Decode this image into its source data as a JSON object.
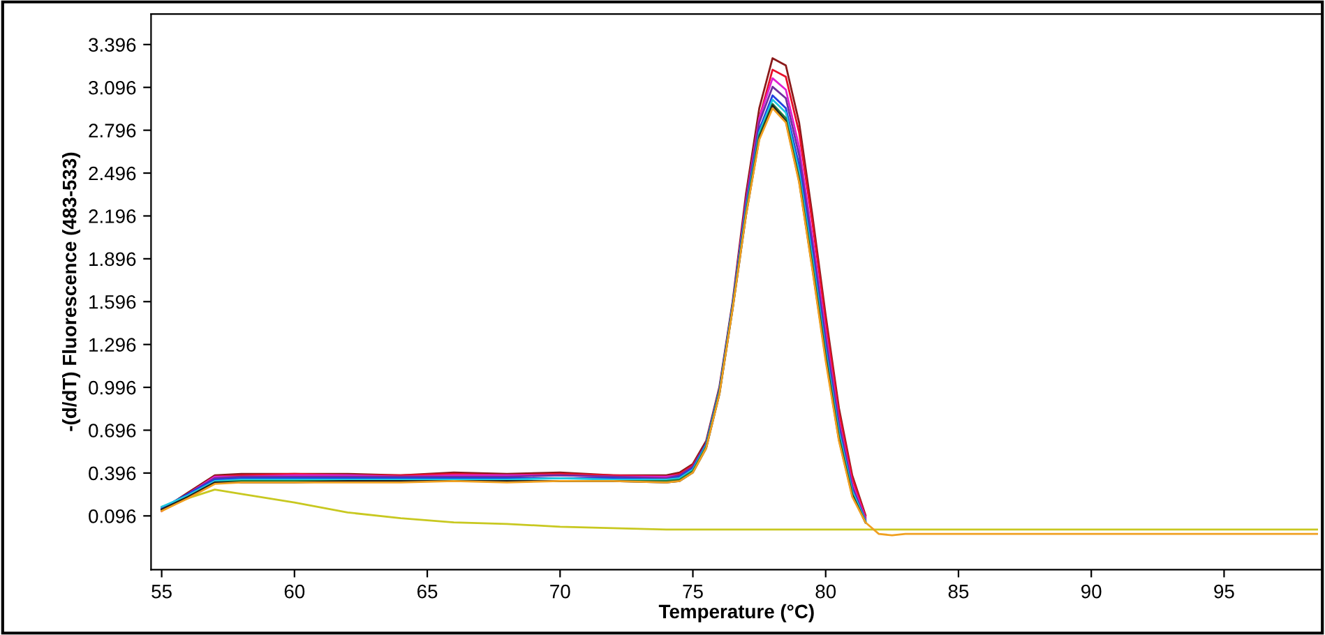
{
  "chart_data": {
    "type": "line",
    "xlabel": "Temperature (°C)",
    "ylabel": "-(d/dT) Fluorescence (483-533)",
    "x": [
      55,
      56,
      57,
      58,
      60,
      62,
      64,
      66,
      68,
      70,
      72,
      74,
      74.5,
      75,
      75.5,
      76,
      76.5,
      77,
      77.5,
      78,
      78.5,
      79,
      79.5,
      80,
      80.5,
      81,
      81.5,
      82,
      82.5,
      83,
      84,
      86,
      88,
      90,
      92,
      94,
      96,
      98.5
    ],
    "xlim": [
      54.6,
      98.7
    ],
    "xticks": [
      55,
      60,
      65,
      70,
      75,
      80,
      85,
      90,
      95
    ],
    "ylim": [
      -0.28,
      3.61
    ],
    "yticks": [
      0.096,
      0.396,
      0.696,
      0.996,
      1.296,
      1.596,
      1.896,
      2.196,
      2.496,
      2.796,
      3.096,
      3.396
    ],
    "grid": false,
    "series": [
      {
        "color": "#c8c820",
        "values": [
          0.16,
          0.22,
          0.28,
          0.25,
          0.19,
          0.12,
          0.08,
          0.05,
          0.04,
          0.02,
          0.01,
          0.0,
          0.0,
          0.0,
          0.0,
          0.0,
          0.0,
          0.0,
          0.0,
          0.0,
          0.0,
          0.0,
          0.0,
          0.0,
          0.0,
          0.0,
          0.0,
          0.0,
          0.0,
          0.0,
          0.0,
          0.0,
          0.0,
          0.0,
          0.0,
          0.0,
          0.0,
          0.0
        ]
      },
      {
        "color": "#8b1a1a",
        "values": [
          0.14,
          0.26,
          0.38,
          0.39,
          0.39,
          0.39,
          0.38,
          0.4,
          0.39,
          0.4,
          0.38,
          0.38,
          0.4,
          0.46,
          0.62,
          1.0,
          1.6,
          2.35,
          2.95,
          3.3,
          3.25,
          2.85,
          2.2,
          1.5,
          0.85,
          0.38,
          0.1,
          null,
          null,
          null,
          null,
          null,
          null,
          null,
          null,
          null,
          null,
          null
        ]
      },
      {
        "color": "#e8102a",
        "values": [
          0.13,
          0.25,
          0.37,
          0.38,
          0.39,
          0.38,
          0.38,
          0.39,
          0.38,
          0.39,
          0.38,
          0.37,
          0.39,
          0.45,
          0.6,
          0.97,
          1.57,
          2.3,
          2.88,
          3.22,
          3.17,
          2.78,
          2.15,
          1.46,
          0.82,
          0.36,
          0.09,
          null,
          null,
          null,
          null,
          null,
          null,
          null,
          null,
          null,
          null,
          null
        ]
      },
      {
        "color": "#e020d0",
        "values": [
          0.13,
          0.25,
          0.37,
          0.37,
          0.38,
          0.38,
          0.37,
          0.38,
          0.38,
          0.38,
          0.37,
          0.37,
          0.38,
          0.44,
          0.6,
          0.98,
          1.58,
          2.3,
          2.88,
          3.16,
          3.08,
          2.68,
          2.05,
          1.38,
          0.76,
          0.32,
          0.08,
          null,
          null,
          null,
          null,
          null,
          null,
          null,
          null,
          null,
          null,
          null
        ]
      },
      {
        "color": "#7030a0",
        "values": [
          0.14,
          0.25,
          0.36,
          0.37,
          0.37,
          0.37,
          0.37,
          0.37,
          0.37,
          0.38,
          0.37,
          0.36,
          0.38,
          0.44,
          0.6,
          0.98,
          1.58,
          2.28,
          2.85,
          3.1,
          3.02,
          2.62,
          2.0,
          1.34,
          0.74,
          0.3,
          0.07,
          null,
          null,
          null,
          null,
          null,
          null,
          null,
          null,
          null,
          null,
          null
        ]
      },
      {
        "color": "#2040e0",
        "values": [
          0.15,
          0.25,
          0.35,
          0.36,
          0.36,
          0.36,
          0.36,
          0.36,
          0.36,
          0.36,
          0.36,
          0.35,
          0.37,
          0.43,
          0.6,
          0.98,
          1.58,
          2.26,
          2.8,
          3.04,
          2.95,
          2.55,
          1.94,
          1.28,
          0.7,
          0.28,
          0.06,
          null,
          null,
          null,
          null,
          null,
          null,
          null,
          null,
          null,
          null,
          null
        ]
      },
      {
        "color": "#20c8e0",
        "values": [
          0.16,
          0.24,
          0.34,
          0.35,
          0.35,
          0.35,
          0.35,
          0.35,
          0.35,
          0.36,
          0.35,
          0.35,
          0.36,
          0.42,
          0.59,
          0.97,
          1.57,
          2.24,
          2.78,
          3.01,
          2.92,
          2.5,
          1.9,
          1.25,
          0.68,
          0.27,
          0.06,
          null,
          null,
          null,
          null,
          null,
          null,
          null,
          null,
          null,
          null,
          null
        ]
      },
      {
        "color": "#208040",
        "values": [
          0.14,
          0.23,
          0.33,
          0.34,
          0.34,
          0.34,
          0.34,
          0.34,
          0.34,
          0.34,
          0.34,
          0.34,
          0.35,
          0.41,
          0.58,
          0.96,
          1.56,
          2.22,
          2.76,
          2.98,
          2.88,
          2.46,
          1.86,
          1.22,
          0.65,
          0.25,
          0.05,
          null,
          null,
          null,
          null,
          null,
          null,
          null,
          null,
          null,
          null,
          null
        ]
      },
      {
        "color": "#202020",
        "values": [
          0.14,
          0.23,
          0.33,
          0.33,
          0.33,
          0.34,
          0.34,
          0.34,
          0.34,
          0.34,
          0.34,
          0.33,
          0.34,
          0.4,
          0.57,
          0.95,
          1.55,
          2.2,
          2.74,
          2.97,
          2.86,
          2.44,
          1.83,
          1.2,
          0.63,
          0.24,
          0.05,
          null,
          null,
          null,
          null,
          null,
          null,
          null,
          null,
          null,
          null,
          null
        ]
      },
      {
        "color": "#f0a020",
        "values": [
          0.13,
          0.22,
          0.32,
          0.33,
          0.33,
          0.33,
          0.33,
          0.34,
          0.33,
          0.34,
          0.34,
          0.33,
          0.34,
          0.4,
          0.57,
          0.95,
          1.55,
          2.2,
          2.73,
          2.95,
          2.85,
          2.43,
          1.82,
          1.18,
          0.62,
          0.23,
          0.05,
          -0.03,
          -0.04,
          -0.03,
          -0.03,
          -0.03,
          -0.03,
          -0.03,
          -0.03,
          -0.03,
          -0.03,
          -0.03
        ]
      }
    ]
  }
}
